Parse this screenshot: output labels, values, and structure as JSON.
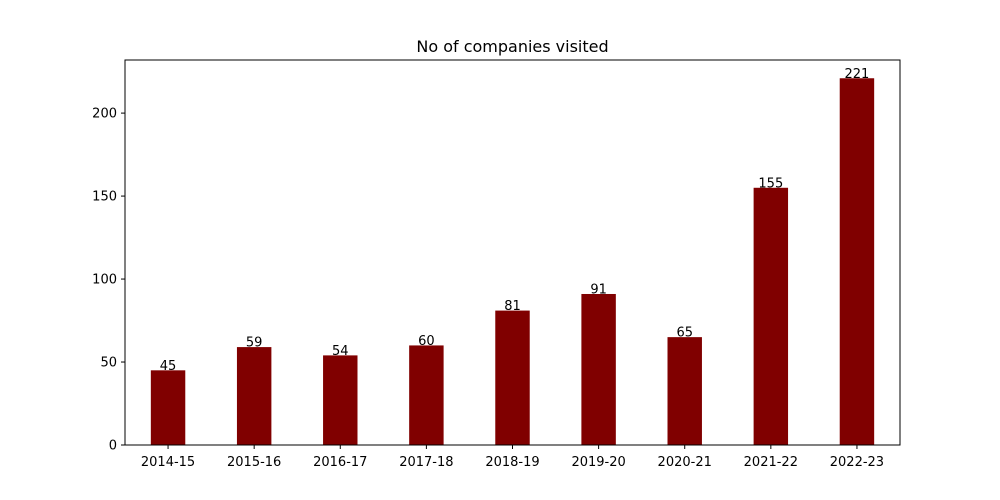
{
  "chart_data": {
    "type": "bar",
    "title": "No of companies visited",
    "xlabel": "",
    "ylabel": "",
    "categories": [
      "2014-15",
      "2015-16",
      "2016-17",
      "2017-18",
      "2018-19",
      "2019-20",
      "2020-21",
      "2021-22",
      "2022-23"
    ],
    "values": [
      45,
      59,
      54,
      60,
      81,
      91,
      65,
      155,
      221
    ],
    "ylim": [
      0,
      232
    ],
    "yticks": [
      0,
      50,
      100,
      150,
      200
    ],
    "grid": false,
    "bar_color": "#800000"
  }
}
